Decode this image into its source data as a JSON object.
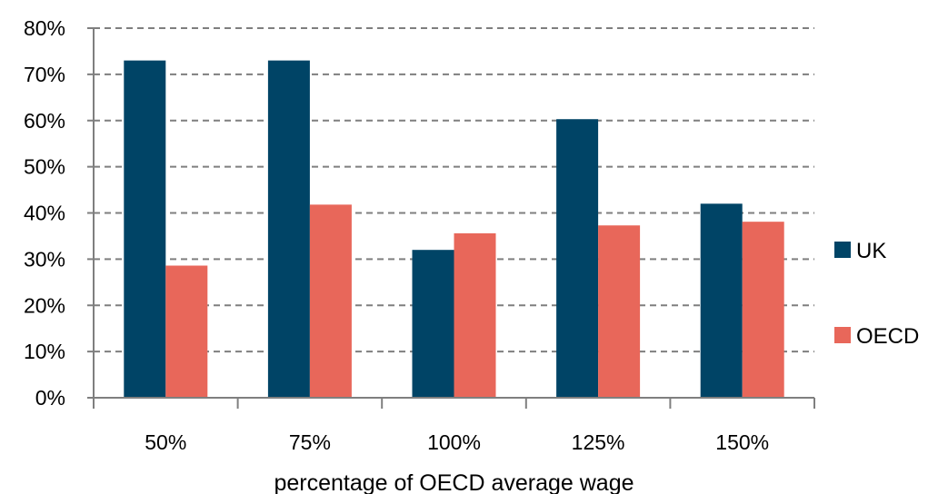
{
  "chart_data": {
    "type": "bar",
    "categories": [
      "50%",
      "75%",
      "100%",
      "125%",
      "150%"
    ],
    "series": [
      {
        "name": "UK",
        "values": [
          73,
          73,
          32,
          60.3,
          42
        ],
        "color": "#004466"
      },
      {
        "name": "OECD",
        "values": [
          28.6,
          41.8,
          35.6,
          37.3,
          38.1
        ],
        "color": "#e8675a"
      }
    ],
    "title": "",
    "xlabel": "percentage of OECD average wage",
    "ylabel": "",
    "ylim": [
      0,
      80
    ],
    "yticks": [
      "0%",
      "10%",
      "20%",
      "30%",
      "40%",
      "50%",
      "60%",
      "70%",
      "80%"
    ],
    "grid": true,
    "legend_position": "right"
  }
}
